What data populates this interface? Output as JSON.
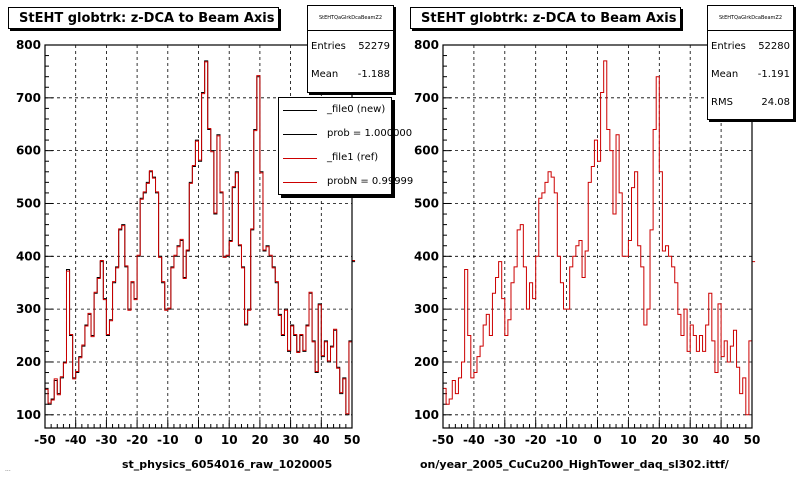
{
  "chart_data": [
    {
      "type": "histogram",
      "title": "StEHT globtrk: z-DCA to Beam Axis",
      "xlim": [
        -50,
        50
      ],
      "ylim": [
        75,
        800
      ],
      "x_ticks": [
        -50,
        -40,
        -30,
        -20,
        -10,
        0,
        10,
        20,
        30,
        40,
        50
      ],
      "y_ticks": [
        100,
        200,
        300,
        400,
        500,
        600,
        700,
        800
      ],
      "grid": true,
      "bin_width": 1,
      "series": [
        {
          "name": "_file0 (new)",
          "color": "#000000",
          "values": [
            150,
            120,
            130,
            165,
            140,
            170,
            200,
            375,
            250,
            170,
            180,
            210,
            230,
            270,
            290,
            250,
            330,
            360,
            390,
            320,
            250,
            280,
            350,
            380,
            450,
            460,
            380,
            300,
            350,
            320,
            400,
            510,
            520,
            540,
            560,
            550,
            520,
            400,
            350,
            300,
            300,
            380,
            400,
            420,
            430,
            360,
            410,
            540,
            570,
            620,
            580,
            710,
            770,
            640,
            600,
            480,
            630,
            520,
            400,
            400,
            430,
            530,
            560,
            420,
            380,
            270,
            300,
            450,
            640,
            740,
            560,
            410,
            420,
            400,
            380,
            350,
            290,
            250,
            300,
            220,
            270,
            250,
            220,
            250,
            220,
            270,
            330,
            240,
            180,
            310,
            210,
            240,
            200,
            230,
            260,
            190,
            140,
            170,
            100,
            240,
            390
          ]
        },
        {
          "name": "_file1 (ref)",
          "color": "#cc0000",
          "values": [
            148,
            122,
            128,
            168,
            138,
            172,
            198,
            372,
            252,
            168,
            182,
            208,
            232,
            268,
            292,
            248,
            332,
            358,
            392,
            318,
            252,
            278,
            352,
            378,
            452,
            458,
            382,
            298,
            352,
            318,
            402,
            508,
            522,
            538,
            562,
            548,
            522,
            398,
            352,
            298,
            302,
            378,
            402,
            418,
            432,
            358,
            412,
            538,
            572,
            618,
            582,
            708,
            768,
            642,
            598,
            482,
            628,
            522,
            398,
            402,
            428,
            532,
            558,
            422,
            378,
            272,
            298,
            452,
            638,
            742,
            558,
            412,
            418,
            402,
            378,
            352,
            288,
            252,
            298,
            222,
            268,
            252,
            218,
            252,
            222,
            268,
            332,
            238,
            182,
            308,
            212,
            238,
            202,
            228,
            262,
            188,
            142,
            168,
            102,
            238,
            392
          ]
        }
      ],
      "legend": {
        "placement": "top-right",
        "entries": [
          {
            "label": "_file0 (new)",
            "color": "#000000"
          },
          {
            "label": "prob = 1.000000",
            "color": "#000000"
          },
          {
            "label": "_file1 (ref)",
            "color": "#cc0000"
          },
          {
            "label": "probN = 0.99999",
            "color": "#cc0000"
          }
        ]
      }
    },
    {
      "type": "histogram",
      "title": "StEHT globtrk: z-DCA to Beam Axis",
      "xlim": [
        -50,
        50
      ],
      "ylim": [
        75,
        800
      ],
      "x_ticks": [
        -50,
        -40,
        -30,
        -20,
        -10,
        0,
        10,
        20,
        30,
        40,
        50
      ],
      "y_ticks": [
        100,
        200,
        300,
        400,
        500,
        600,
        700,
        800
      ],
      "grid": true,
      "bin_width": 1,
      "series": [
        {
          "name": "",
          "color": "#cc0000",
          "values": [
            150,
            120,
            130,
            165,
            140,
            170,
            200,
            375,
            250,
            170,
            180,
            210,
            230,
            270,
            290,
            250,
            330,
            360,
            390,
            320,
            250,
            280,
            350,
            380,
            450,
            460,
            380,
            300,
            350,
            320,
            400,
            510,
            520,
            540,
            560,
            550,
            520,
            400,
            350,
            300,
            300,
            380,
            400,
            420,
            430,
            360,
            410,
            540,
            570,
            620,
            580,
            710,
            770,
            640,
            600,
            480,
            630,
            520,
            400,
            400,
            430,
            530,
            560,
            420,
            380,
            270,
            300,
            450,
            640,
            740,
            560,
            410,
            420,
            400,
            380,
            350,
            290,
            250,
            300,
            220,
            270,
            250,
            220,
            250,
            220,
            270,
            330,
            240,
            180,
            310,
            210,
            240,
            200,
            230,
            260,
            190,
            140,
            170,
            100,
            240,
            390
          ]
        }
      ]
    }
  ],
  "panels": [
    {
      "stats": {
        "name": "StEHTQaGlrkDcaBeamZ2",
        "rows": [
          {
            "k": "Entries",
            "v": "52279"
          },
          {
            "k": "Mean",
            "v": "-1.188"
          }
        ]
      },
      "footer": "st_physics_6054016_raw_1020005"
    },
    {
      "stats": {
        "name": "StEHTQaGlrkDcaBeamZ2",
        "rows": [
          {
            "k": "Entries",
            "v": "52280"
          },
          {
            "k": "Mean",
            "v": "-1.191"
          },
          {
            "k": "RMS",
            "v": "24.08"
          }
        ]
      },
      "footer": "on/year_2005_CuCu200_HighTower_daq_sl302.ittf/"
    }
  ],
  "tiny_text": "..."
}
